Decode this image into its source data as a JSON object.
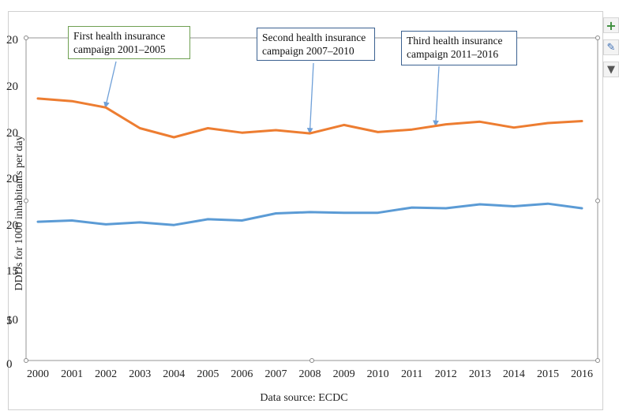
{
  "chart_data": {
    "type": "line",
    "x": [
      2000,
      2001,
      2002,
      2003,
      2004,
      2005,
      2006,
      2007,
      2008,
      2009,
      2010,
      2011,
      2012,
      2013,
      2014,
      2015,
      2016
    ],
    "series": [
      {
        "color": "#ed7d31",
        "values": [
          40.6,
          40.2,
          39.2,
          36.0,
          34.6,
          36.0,
          35.3,
          35.7,
          35.2,
          36.5,
          35.4,
          35.8,
          36.6,
          37.0,
          36.1,
          36.8,
          37.1
        ]
      },
      {
        "color": "#5b9bd5",
        "values": [
          21.5,
          21.7,
          21.1,
          21.4,
          21.0,
          21.9,
          21.7,
          22.8,
          23.0,
          22.9,
          22.9,
          23.7,
          23.6,
          24.2,
          23.9,
          24.3,
          23.6
        ]
      }
    ],
    "y_tick_labels": [
      "20",
      "20",
      "20",
      "20",
      "20",
      "15",
      "10",
      "5",
      "0"
    ],
    "ylabel": "DDDs for 1000 inhabitants per day",
    "xlabel": "Data source: ECDC",
    "ylim": [
      0,
      50
    ],
    "grid": false,
    "annotations": [
      {
        "text_line1": "First health insurance",
        "text_line2": "campaign 2001–2005",
        "points_to_x": 2002
      },
      {
        "text_line1": "Second health insurance",
        "text_line2": "campaign 2007–2010",
        "points_to_x": 2008
      },
      {
        "text_line1": "Third health insurance",
        "text_line2": "campaign 2011–2016",
        "points_to_x": 2011.7
      }
    ]
  },
  "toolbar": {
    "add_icon": "plus-icon",
    "style_icon": "paintbrush-icon",
    "filter_icon": "filter-icon",
    "add_glyph": "+",
    "style_glyph": "✎",
    "filter_glyph": "▼"
  }
}
